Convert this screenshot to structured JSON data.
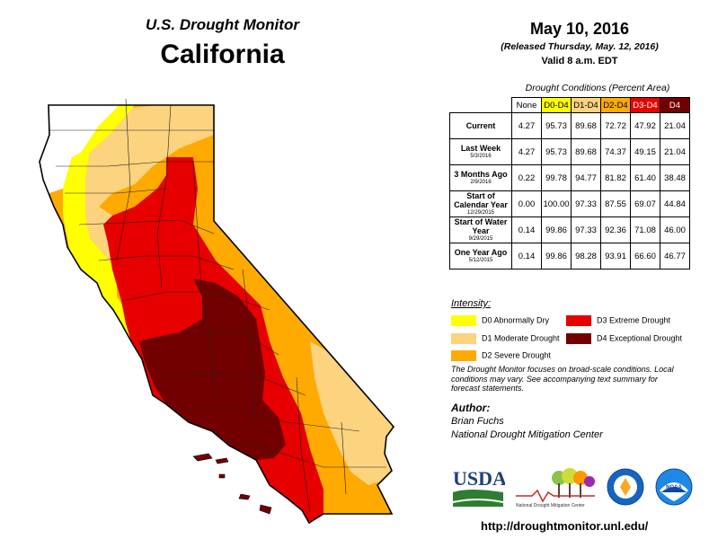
{
  "header": {
    "program": "U.S. Drought Monitor",
    "state": "California"
  },
  "date": "May 10, 2016",
  "released": "(Released Thursday, May. 12, 2016)",
  "valid": "Valid 8 a.m. EDT",
  "table": {
    "title": "Drought Conditions (Percent Area)",
    "columns": [
      {
        "label": "None",
        "color": "#ffffff"
      },
      {
        "label": "D0-D4",
        "color": "#ffff00"
      },
      {
        "label": "D1-D4",
        "color": "#fcd37f"
      },
      {
        "label": "D2-D4",
        "color": "#ffaa00"
      },
      {
        "label": "D3-D4",
        "color": "#e60000"
      },
      {
        "label": "D4",
        "color": "#730000"
      }
    ],
    "rows": [
      {
        "label": "Current",
        "sub": "",
        "values": [
          "4.27",
          "95.73",
          "89.68",
          "72.72",
          "47.92",
          "21.04"
        ]
      },
      {
        "label": "Last Week",
        "sub": "5/3/2016",
        "values": [
          "4.27",
          "95.73",
          "89.68",
          "74.37",
          "49.15",
          "21.04"
        ]
      },
      {
        "label": "3 Months Ago",
        "sub": "2/9/2016",
        "values": [
          "0.22",
          "99.78",
          "94.77",
          "81.82",
          "61.40",
          "38.48"
        ]
      },
      {
        "label": "Start of Calendar Year",
        "sub": "12/29/2015",
        "values": [
          "0.00",
          "100.00",
          "97.33",
          "87.55",
          "69.07",
          "44.84"
        ]
      },
      {
        "label": "Start of Water Year",
        "sub": "9/29/2015",
        "values": [
          "0.14",
          "99.86",
          "97.33",
          "92.36",
          "71.08",
          "46.00"
        ]
      },
      {
        "label": "One Year Ago",
        "sub": "5/12/2015",
        "values": [
          "0.14",
          "99.86",
          "98.28",
          "93.91",
          "66.60",
          "46.77"
        ]
      }
    ]
  },
  "intensity": {
    "title": "Intensity:",
    "items": [
      {
        "label": "D0 Abnormally Dry",
        "color": "#ffff00"
      },
      {
        "label": "D1 Moderate Drought",
        "color": "#fcd37f"
      },
      {
        "label": "D2 Severe Drought",
        "color": "#ffaa00"
      },
      {
        "label": "D3 Extreme Drought",
        "color": "#e60000"
      },
      {
        "label": "D4 Exceptional Drought",
        "color": "#730000"
      }
    ]
  },
  "note": "The Drought Monitor focuses on broad-scale conditions. Local conditions may vary. See accompanying text summary for forecast statements.",
  "author": {
    "label": "Author:",
    "name": "Brian Fuchs",
    "org": "National Drought Mitigation Center"
  },
  "logos": {
    "usda": "USDA",
    "ndmc": "National Drought Mitigation Center",
    "doc": "",
    "noaa": "NOAA"
  },
  "url": "http://droughtmonitor.unl.edu/"
}
